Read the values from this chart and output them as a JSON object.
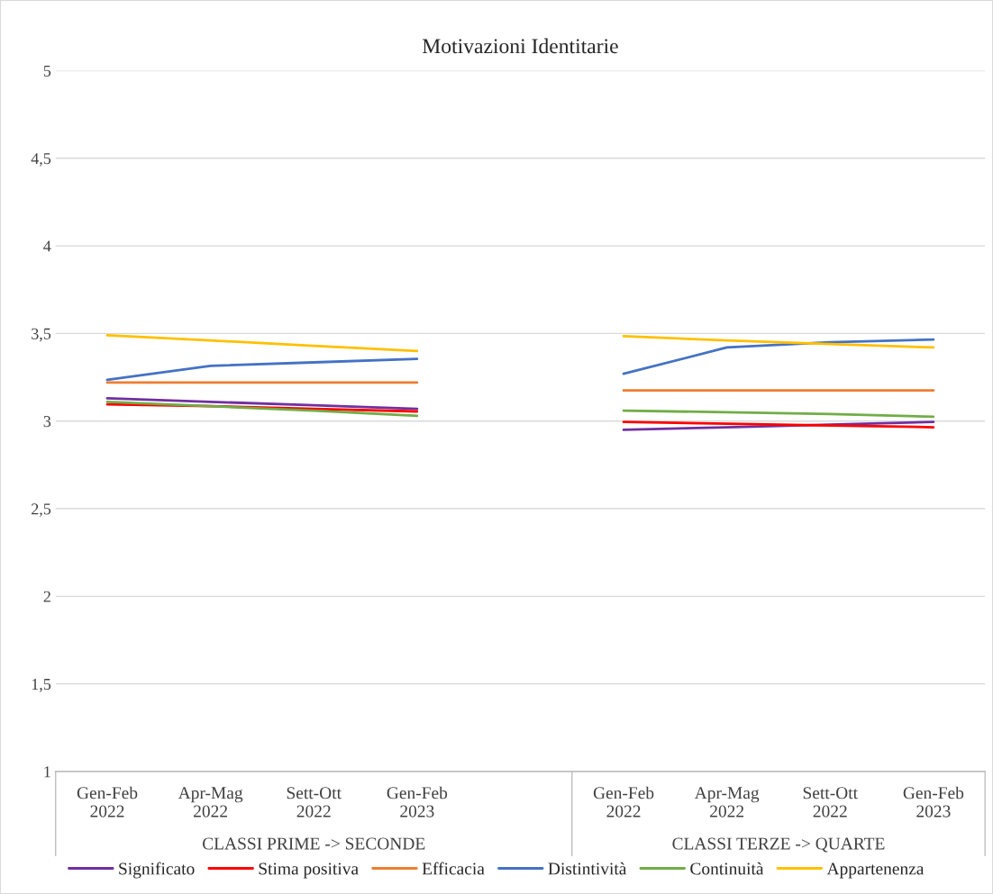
{
  "chart_data": {
    "type": "line",
    "title": "Motivazioni Identitarie",
    "categories": [
      "Gen-Feb\n2022",
      "Apr-Mag\n2022",
      "Sett-Ott\n2022",
      "Gen-Feb\n2023",
      null,
      "Gen-Feb\n2022",
      "Apr-Mag\n2022",
      "Sett-Ott\n2022",
      "Gen-Feb\n2023"
    ],
    "series": [
      {
        "name": "Significato",
        "color": "#7030a0",
        "values": [
          3.13,
          3.11,
          3.09,
          3.07,
          null,
          2.95,
          2.965,
          2.98,
          2.995
        ]
      },
      {
        "name": "Stima positiva",
        "color": "#ff0000",
        "values": [
          3.095,
          3.085,
          3.07,
          3.055,
          null,
          2.995,
          2.985,
          2.975,
          2.965
        ]
      },
      {
        "name": "Efficacia",
        "color": "#ed7d31",
        "values": [
          3.22,
          3.22,
          3.22,
          3.22,
          null,
          3.175,
          3.175,
          3.175,
          3.175
        ]
      },
      {
        "name": "Distintività",
        "color": "#4472c4",
        "values": [
          3.235,
          3.315,
          3.335,
          3.355,
          null,
          3.27,
          3.42,
          3.45,
          3.465
        ]
      },
      {
        "name": "Continuità",
        "color": "#70ad47",
        "values": [
          3.11,
          3.085,
          3.06,
          3.03,
          null,
          3.06,
          3.05,
          3.04,
          3.025
        ]
      },
      {
        "name": "Appartenenza",
        "color": "#ffc000",
        "values": [
          3.49,
          3.46,
          3.43,
          3.4,
          null,
          3.485,
          3.46,
          3.44,
          3.42
        ]
      }
    ],
    "annotations": [
      "CLASSI PRIME -> SECONDE",
      "CLASSI TERZE -> QUARTE"
    ],
    "ylim": [
      1,
      5
    ],
    "yticks": [
      1,
      {
        "value": 1.5,
        "label": "1,5"
      },
      2,
      {
        "value": 2.5,
        "label": "2,5"
      },
      3,
      {
        "value": 3.5,
        "label": "3,5"
      },
      4,
      {
        "value": 4.5,
        "label": "4,5"
      },
      5
    ],
    "grid": "y",
    "legend": "bottom",
    "marker": "none",
    "line_style": "solid"
  }
}
